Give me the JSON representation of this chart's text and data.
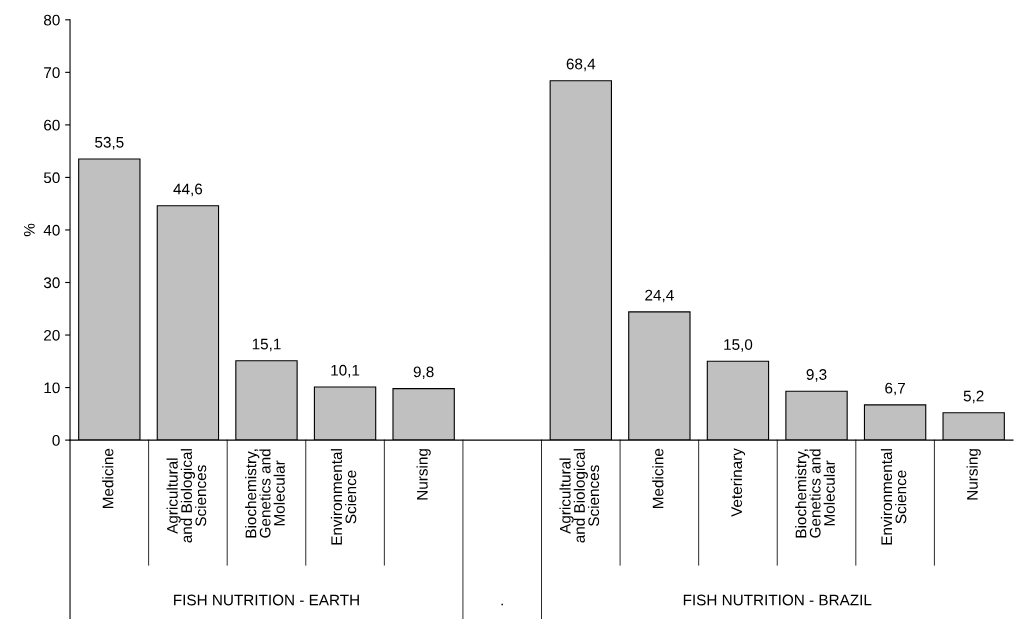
{
  "chart_data": {
    "type": "bar",
    "ylabel": "%",
    "categories": [
      "Medicine",
      "Agricultural\nand Biological\nSciences",
      "Biochemistry,\nGenetics and\nMolecular",
      "Environmental\nScience",
      "Nursing",
      null,
      "Agricultural\nand Biological\nSciences",
      "Medicine",
      "Veterinary",
      "Biochemistry,\nGenetics and\nMolecular",
      "Environmental\nScience",
      "Nursing"
    ],
    "values": [
      53.5,
      44.6,
      15.1,
      10.1,
      9.8,
      null,
      68.4,
      24.4,
      15.0,
      9.3,
      6.7,
      5.2
    ],
    "value_labels": [
      "53,5",
      "44,6",
      "15,1",
      "10,1",
      "9,8",
      null,
      "68,4",
      "24,4",
      "15,0",
      "9,3",
      "6,7",
      "5,2"
    ],
    "color": "#c0c0c0",
    "ylim": [
      0,
      80
    ],
    "yticks": [
      0,
      10,
      20,
      30,
      40,
      50,
      60,
      70,
      80
    ],
    "grid": false,
    "legend": false,
    "annotations": [
      "FISH NUTRITION - EARTH",
      ".",
      "FISH NUTRITION - BRAZIL"
    ]
  }
}
